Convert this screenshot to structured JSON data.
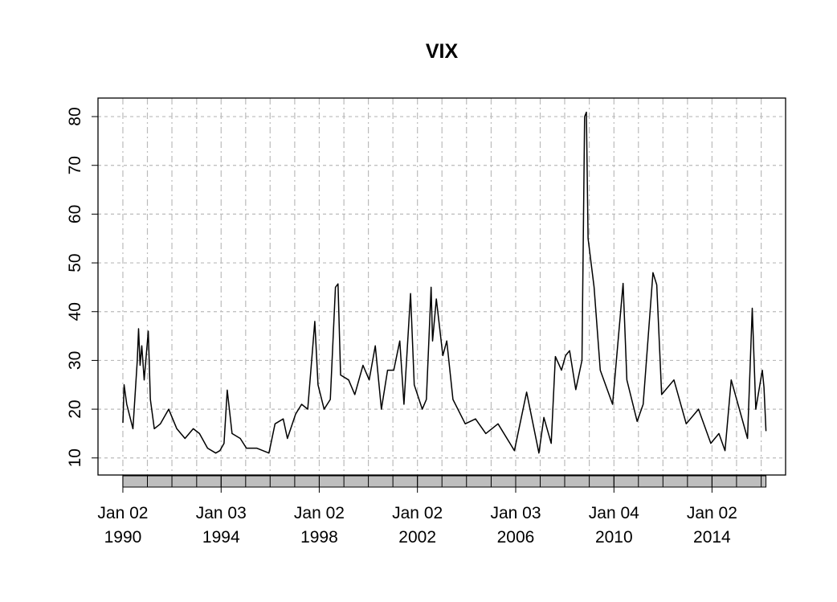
{
  "chart_data": {
    "type": "line",
    "title": "VIX",
    "x": [
      "1990-01-02",
      "1990-01-20",
      "1990-03-01",
      "1990-06-01",
      "1990-08-05",
      "1990-08-23",
      "1990-09-15",
      "1990-10-10",
      "1990-11-15",
      "1991-01-15",
      "1991-02-15",
      "1991-04-15",
      "1991-07-15",
      "1991-11-15",
      "1992-03-15",
      "1992-07-15",
      "1992-11-15",
      "1993-02-15",
      "1993-06-15",
      "1993-10-15",
      "1993-12-15",
      "1994-02-15",
      "1994-04-04",
      "1994-06-15",
      "1994-10-15",
      "1995-01-15",
      "1995-06-15",
      "1995-12-15",
      "1996-03-15",
      "1996-07-15",
      "1996-09-15",
      "1997-01-15",
      "1997-04-15",
      "1997-07-15",
      "1997-10-28",
      "1997-12-15",
      "1998-03-15",
      "1998-06-15",
      "1998-08-31",
      "1998-10-08",
      "1998-11-15",
      "1999-03-15",
      "1999-06-15",
      "1999-10-15",
      "2000-01-15",
      "2000-04-15",
      "2000-07-15",
      "2000-10-15",
      "2001-01-15",
      "2001-04-15",
      "2001-06-15",
      "2001-09-21",
      "2001-11-15",
      "2002-03-15",
      "2002-05-15",
      "2002-07-24",
      "2002-08-15",
      "2002-10-10",
      "2003-01-15",
      "2003-03-15",
      "2003-06-15",
      "2003-12-15",
      "2004-05-15",
      "2004-10-15",
      "2005-04-15",
      "2005-12-15",
      "2006-06-15",
      "2006-12-15",
      "2007-02-27",
      "2007-06-15",
      "2007-08-16",
      "2007-11-15",
      "2008-01-15",
      "2008-03-15",
      "2008-06-15",
      "2008-09-15",
      "2008-10-24",
      "2008-11-20",
      "2008-12-15",
      "2009-03-15",
      "2009-06-15",
      "2009-12-15",
      "2010-05-20",
      "2010-07-15",
      "2010-12-15",
      "2011-03-15",
      "2011-08-08",
      "2011-10-03",
      "2011-12-15",
      "2012-06-15",
      "2012-12-15",
      "2013-06-15",
      "2013-12-15",
      "2014-04-15",
      "2014-07-15",
      "2014-10-15",
      "2014-12-15",
      "2015-06-15",
      "2015-08-24",
      "2015-10-15",
      "2016-01-20",
      "2016-02-15",
      "2016-03-15"
    ],
    "series": [
      {
        "name": "VIX",
        "color": "#000000",
        "values": [
          17.2,
          25,
          21,
          16,
          30,
          36.5,
          29,
          33,
          26,
          36,
          22,
          16,
          17,
          20,
          16,
          14,
          16,
          15,
          12,
          11,
          11.5,
          13,
          23.9,
          15,
          14,
          12,
          12,
          11,
          17,
          18,
          14,
          19,
          21,
          20,
          38,
          25,
          20,
          22,
          45,
          45.7,
          27,
          26,
          23,
          29,
          26,
          33,
          20,
          28,
          28,
          34,
          21,
          43.7,
          25,
          20,
          22,
          45,
          34,
          42.6,
          31,
          34,
          22,
          17,
          18,
          15,
          17,
          11.5,
          23.5,
          11,
          18.3,
          13,
          30.8,
          28,
          31,
          32,
          24,
          30,
          80,
          80.9,
          55,
          45,
          28,
          21,
          45.8,
          26,
          17.5,
          21,
          48,
          45.5,
          23,
          26,
          17,
          20,
          13,
          15,
          11.5,
          26,
          23,
          14,
          40.7,
          20,
          28,
          24.5,
          15.5
        ]
      }
    ],
    "xlim": [
      "1988-12-28",
      "2017-01-01"
    ],
    "xticks": [
      {
        "value": "1990-01-02",
        "label": "Jan 02\n1990"
      },
      {
        "value": "1994-01-03",
        "label": "Jan 03\n1994"
      },
      {
        "value": "1998-01-02",
        "label": "Jan 02\n1998"
      },
      {
        "value": "2002-01-02",
        "label": "Jan 02\n2002"
      },
      {
        "value": "2006-01-03",
        "label": "Jan 03\n2006"
      },
      {
        "value": "2010-01-04",
        "label": "Jan 04\n2010"
      },
      {
        "value": "2014-01-02",
        "label": "Jan 02\n2014"
      }
    ],
    "xminorticks": [
      "1990-01-02",
      "1991-01-02",
      "1992-01-02",
      "1993-01-04",
      "1994-01-03",
      "1995-01-03",
      "1996-01-02",
      "1997-01-02",
      "1998-01-02",
      "1999-01-04",
      "2000-01-03",
      "2001-01-02",
      "2002-01-02",
      "2003-01-02",
      "2004-01-02",
      "2005-01-03",
      "2006-01-03",
      "2007-01-03",
      "2008-01-02",
      "2009-01-02",
      "2010-01-04",
      "2011-01-03",
      "2012-01-03",
      "2013-01-02",
      "2014-01-02",
      "2015-01-02",
      "2016-01-04"
    ],
    "ylim": [
      6.5,
      83.8
    ],
    "yticks": [
      10,
      20,
      30,
      40,
      50,
      60,
      70,
      80
    ],
    "grid": true
  }
}
